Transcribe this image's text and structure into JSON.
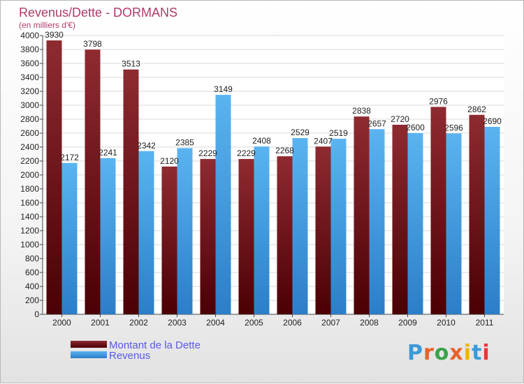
{
  "chart_data": {
    "type": "bar",
    "title": "Revenus/Dette - DORMANS",
    "subtitle": "(en milliers d'€)",
    "categories": [
      "2000",
      "2001",
      "2002",
      "2003",
      "2004",
      "2005",
      "2006",
      "2007",
      "2008",
      "2009",
      "2010",
      "2011"
    ],
    "series": [
      {
        "name": "Montant de la Dette",
        "values": [
          3930,
          3798,
          3513,
          2120,
          2229,
          2229,
          2268,
          2407,
          2838,
          2720,
          2976,
          2862
        ],
        "color": "#7a1f24"
      },
      {
        "name": "Revenus",
        "values": [
          2172,
          2241,
          2342,
          2385,
          3149,
          2408,
          2529,
          2519,
          2657,
          2600,
          2596,
          2690
        ],
        "color": "#4aa8e8"
      }
    ],
    "ylim": [
      0,
      4000
    ],
    "yticks": [
      0,
      200,
      400,
      600,
      800,
      1000,
      1200,
      1400,
      1600,
      1800,
      2000,
      2200,
      2400,
      2600,
      2800,
      3000,
      3200,
      3400,
      3600,
      3800,
      4000
    ],
    "grid": true,
    "legend_position": "bottom-left"
  },
  "colors": {
    "title": "#b03a6a",
    "legend_text": "#5a5ae0"
  },
  "logo": {
    "letters": [
      "P",
      "r",
      "o",
      "x",
      "i",
      "t",
      "i"
    ],
    "colors": [
      "#3a9ad9",
      "#e8622a",
      "#3aa24a",
      "#e8622a",
      "#f0b400",
      "#3a9ad9",
      "#e03a3a"
    ]
  }
}
